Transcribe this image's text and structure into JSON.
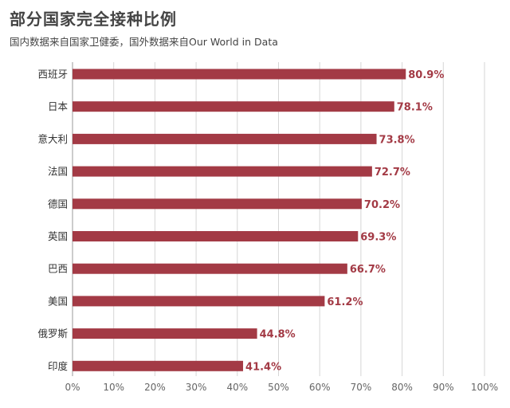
{
  "header": {
    "title": "部分国家完全接种比例",
    "subtitle": "国内数据来自国家卫健委，国外数据来自Our World in Data"
  },
  "colors": {
    "bar": "#a33a45",
    "value_label": "#a33a45",
    "grid": "#d6d6d6",
    "axis": "#999999"
  },
  "chart_data": {
    "type": "bar",
    "orientation": "horizontal",
    "title": "部分国家完全接种比例",
    "subtitle": "国内数据来自国家卫健委，国外数据来自Our World in Data",
    "categories": [
      "西班牙",
      "日本",
      "意大利",
      "法国",
      "德国",
      "英国",
      "巴西",
      "美国",
      "俄罗斯",
      "印度"
    ],
    "values": [
      80.9,
      78.1,
      73.8,
      72.7,
      70.2,
      69.3,
      66.7,
      61.2,
      44.8,
      41.4
    ],
    "value_labels": [
      "80.9%",
      "78.1%",
      "73.8%",
      "72.7%",
      "70.2%",
      "69.3%",
      "66.7%",
      "61.2%",
      "44.8%",
      "41.4%"
    ],
    "xlim": [
      0,
      100
    ],
    "xticks": [
      0,
      10,
      20,
      30,
      40,
      50,
      60,
      70,
      80,
      90,
      100
    ],
    "xtick_labels": [
      "0%",
      "10%",
      "20%",
      "30%",
      "40%",
      "50%",
      "60%",
      "70%",
      "80%",
      "90%",
      "100%"
    ],
    "xlabel": "",
    "ylabel": "",
    "grid": "vertical",
    "legend": "none"
  }
}
